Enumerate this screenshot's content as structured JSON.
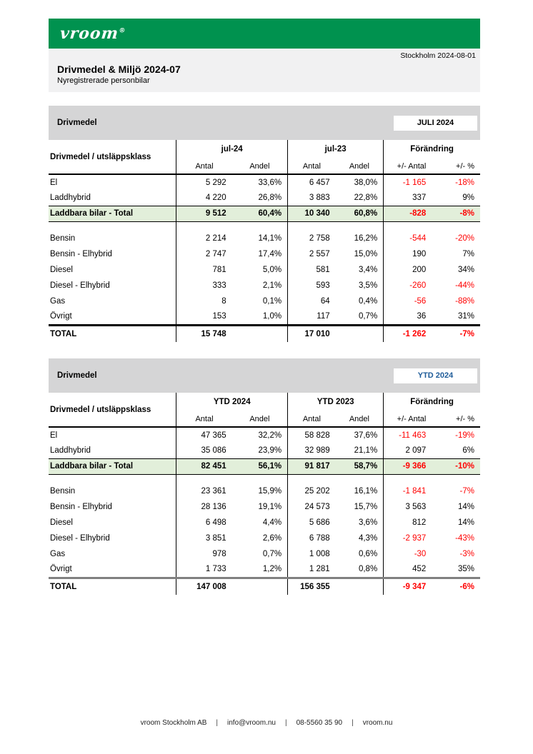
{
  "header": {
    "logo_text": "vroom",
    "trademark": "®",
    "dateline": "Stockholm 2024-08-01",
    "title": "Drivmedel & Miljö 2024-07",
    "subtitle": "Nyregistrerade personbilar"
  },
  "colors": {
    "brand_green": "#00924F",
    "header_gray": "#F1F1F2",
    "band_gray": "#D5D5D6",
    "row_highlight_green": "#E2EFDA",
    "negative_red": "#FF0000",
    "ytd_badge_blue": "#1F5C99",
    "total_rule_gray_table2": "#808080"
  },
  "tables": [
    {
      "section_label": "Drivmedel",
      "badge": "JULI 2024",
      "badge_color": "#000000",
      "total_rule": "#000000",
      "columns": {
        "label": "Drivmedel / utsläppsklass",
        "group_current": "jul-24",
        "group_previous": "jul-23",
        "group_change": "Förändring",
        "antal": "Antal",
        "andel": "Andel",
        "change_antal": "+/- Antal",
        "change_pct": "+/- %"
      },
      "rows": [
        {
          "label": "El",
          "values": [
            "5 292",
            "33,6%",
            "6 457",
            "38,0%",
            "-1 165",
            "-18%"
          ],
          "negative": true
        },
        {
          "label": "Laddhybrid",
          "values": [
            "4 220",
            "26,8%",
            "3 883",
            "22,8%",
            "337",
            "9%"
          ],
          "negative": false
        },
        {
          "label": "Laddbara bilar - Total",
          "values": [
            "9 512",
            "60,4%",
            "10 340",
            "60,8%",
            "-828",
            "-8%"
          ],
          "negative": true,
          "highlight": true
        },
        {
          "spacer": true
        },
        {
          "label": "Bensin",
          "values": [
            "2 214",
            "14,1%",
            "2 758",
            "16,2%",
            "-544",
            "-20%"
          ],
          "negative": true
        },
        {
          "label": "Bensin - Elhybrid",
          "values": [
            "2 747",
            "17,4%",
            "2 557",
            "15,0%",
            "190",
            "7%"
          ],
          "negative": false
        },
        {
          "label": "Diesel",
          "values": [
            "781",
            "5,0%",
            "581",
            "3,4%",
            "200",
            "34%"
          ],
          "negative": false
        },
        {
          "label": "Diesel - Elhybrid",
          "values": [
            "333",
            "2,1%",
            "593",
            "3,5%",
            "-260",
            "-44%"
          ],
          "negative": true
        },
        {
          "label": "Gas",
          "values": [
            "8",
            "0,1%",
            "64",
            "0,4%",
            "-56",
            "-88%"
          ],
          "negative": true
        },
        {
          "label": "Övrigt",
          "values": [
            "153",
            "1,0%",
            "117",
            "0,7%",
            "36",
            "31%"
          ],
          "negative": false
        },
        {
          "label": "TOTAL",
          "values": [
            "15 748",
            "",
            "17 010",
            "",
            "-1 262",
            "-7%"
          ],
          "negative": true,
          "total": true
        }
      ]
    },
    {
      "section_label": "Drivmedel",
      "badge": "YTD 2024",
      "badge_color": "#1F5C99",
      "total_rule": "#808080",
      "columns": {
        "label": "Drivmedel / utsläppsklass",
        "group_current": "YTD 2024",
        "group_previous": "YTD 2023",
        "group_change": "Förändring",
        "antal": "Antal",
        "andel": "Andel",
        "change_antal": "+/- Antal",
        "change_pct": "+/- %"
      },
      "rows": [
        {
          "label": "El",
          "values": [
            "47 365",
            "32,2%",
            "58 828",
            "37,6%",
            "-11 463",
            "-19%"
          ],
          "negative": true
        },
        {
          "label": "Laddhybrid",
          "values": [
            "35 086",
            "23,9%",
            "32 989",
            "21,1%",
            "2 097",
            "6%"
          ],
          "negative": false
        },
        {
          "label": "Laddbara bilar - Total",
          "values": [
            "82 451",
            "56,1%",
            "91 817",
            "58,7%",
            "-9 366",
            "-10%"
          ],
          "negative": true,
          "highlight": true
        },
        {
          "spacer": true
        },
        {
          "label": "Bensin",
          "values": [
            "23 361",
            "15,9%",
            "25 202",
            "16,1%",
            "-1 841",
            "-7%"
          ],
          "negative": true
        },
        {
          "label": "Bensin - Elhybrid",
          "values": [
            "28 136",
            "19,1%",
            "24 573",
            "15,7%",
            "3 563",
            "14%"
          ],
          "negative": false
        },
        {
          "label": "Diesel",
          "values": [
            "6 498",
            "4,4%",
            "5 686",
            "3,6%",
            "812",
            "14%"
          ],
          "negative": false
        },
        {
          "label": "Diesel - Elhybrid",
          "values": [
            "3 851",
            "2,6%",
            "6 788",
            "4,3%",
            "-2 937",
            "-43%"
          ],
          "negative": true
        },
        {
          "label": "Gas",
          "values": [
            "978",
            "0,7%",
            "1 008",
            "0,6%",
            "-30",
            "-3%"
          ],
          "negative": true
        },
        {
          "label": "Övrigt",
          "values": [
            "1 733",
            "1,2%",
            "1 281",
            "0,8%",
            "452",
            "35%"
          ],
          "negative": false
        },
        {
          "label": "TOTAL",
          "values": [
            "147 008",
            "",
            "156 355",
            "",
            "-9 347",
            "-6%"
          ],
          "negative": true,
          "total": true
        }
      ]
    }
  ],
  "footer": {
    "items": [
      "vroom Stockholm AB",
      "info@vroom.nu",
      "08-5560 35 90",
      "vroom.nu"
    ],
    "separator": "|"
  }
}
